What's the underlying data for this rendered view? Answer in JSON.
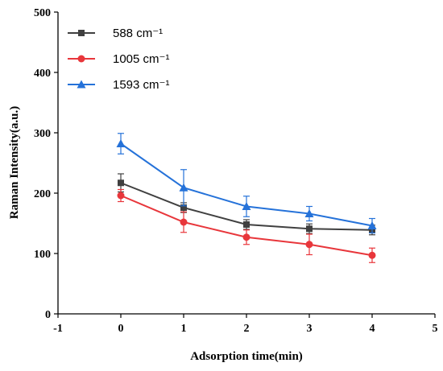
{
  "chart_data": {
    "type": "line",
    "title": "",
    "xlabel": "Adsorption time(min)",
    "ylabel": "Raman Intensity(a.u.)",
    "xlim": [
      -1,
      5
    ],
    "ylim": [
      0,
      500
    ],
    "xticks": [
      "-1",
      "0",
      "1",
      "2",
      "3",
      "4",
      "5"
    ],
    "yticks": [
      "0",
      "100",
      "200",
      "300",
      "400",
      "500"
    ],
    "legend_position": "top-left",
    "x": [
      0,
      1,
      2,
      3,
      4
    ],
    "series": [
      {
        "name": "588 cm⁻¹",
        "color": "#404040",
        "marker": "square",
        "values": [
          217,
          176,
          148,
          141,
          139
        ],
        "errors": [
          15,
          8,
          8,
          8,
          8
        ]
      },
      {
        "name": "1005 cm⁻¹",
        "color": "#e8363b",
        "marker": "circle",
        "values": [
          196,
          152,
          127,
          115,
          97
        ],
        "errors": [
          10,
          17,
          12,
          17,
          12
        ]
      },
      {
        "name": "1593 cm⁻¹",
        "color": "#2572d9",
        "marker": "triangle",
        "values": [
          282,
          209,
          178,
          166,
          146
        ],
        "errors": [
          17,
          30,
          17,
          12,
          12
        ]
      }
    ]
  }
}
